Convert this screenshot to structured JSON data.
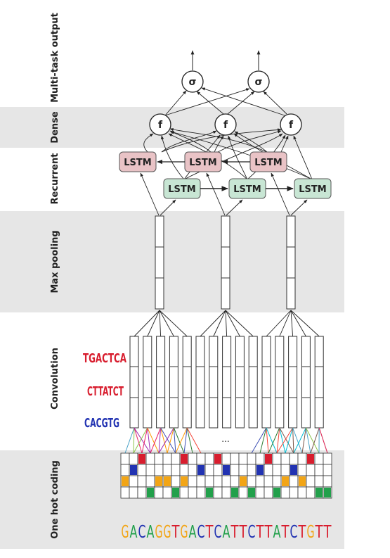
{
  "layers": {
    "output": "Multi-task output",
    "dense": "Dense",
    "recurrent": "Recurrent",
    "maxpool": "Max pooling",
    "conv": "Convolution",
    "onehot": "One hot coding"
  },
  "nodes": {
    "sigmoid": "σ",
    "dense": "f",
    "lstm": "LSTM"
  },
  "ellipsis": "...",
  "motifs": [
    "TGACTCA",
    "CTTATCT",
    "CACGTG"
  ],
  "sequence": "GACAGGTGACTCATTCTTATCTGTT",
  "colors": {
    "A": "#22a04b",
    "C": "#2233b2",
    "G": "#f2a516",
    "T": "#d81d2e",
    "lstm_forward": "#c8e6d4",
    "lstm_backward": "#e9c3c6",
    "band": "#e6e6e6"
  },
  "onehot_cells": [
    [
      2,
      0
    ],
    [
      7,
      0
    ],
    [
      11,
      0
    ],
    [
      17,
      0
    ],
    [
      22,
      0
    ],
    [
      1,
      1
    ],
    [
      9,
      1
    ],
    [
      12,
      1
    ],
    [
      16,
      1
    ],
    [
      20,
      1
    ],
    [
      0,
      2
    ],
    [
      4,
      2
    ],
    [
      5,
      2
    ],
    [
      7,
      2
    ],
    [
      14,
      2
    ],
    [
      19,
      2
    ],
    [
      21,
      2
    ],
    [
      3,
      3
    ],
    [
      6,
      3
    ],
    [
      10,
      3
    ],
    [
      13,
      3
    ],
    [
      15,
      3
    ],
    [
      18,
      3
    ],
    [
      23,
      3
    ],
    [
      24,
      3
    ]
  ],
  "onehot_colors": [
    "#d81d2e",
    "#2233b2",
    "#f2a516",
    "#22a04b"
  ]
}
